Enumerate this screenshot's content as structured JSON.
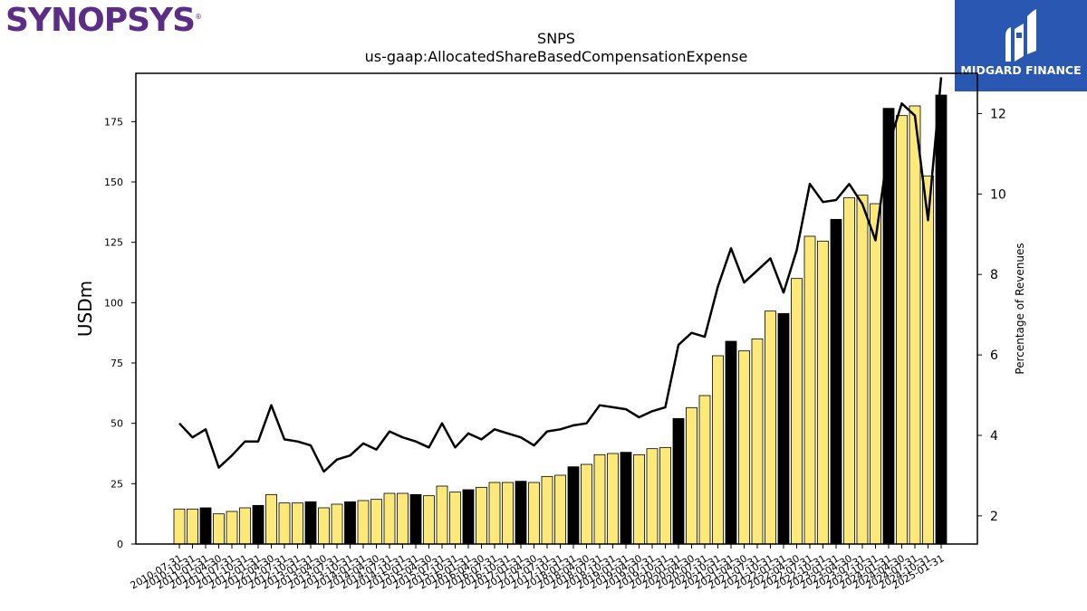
{
  "brand": {
    "left_logo_text": "SYNOPSYS",
    "left_logo_mark": "®",
    "right_logo_name": "MIDGARD FINANCE",
    "right_logo_color": "#2a57b2",
    "left_logo_color": "#5b2d87"
  },
  "chart_data": {
    "type": "bar",
    "title": "SNPS",
    "subtitle": "us-gaap:AllocatedShareBasedCompensationExpense",
    "ylabel": "USDm",
    "y2label": "Percentage of Revenues",
    "ylim": [
      0,
      195
    ],
    "y2lim": [
      1.3,
      13.0
    ],
    "yticks": [
      0,
      25,
      50,
      75,
      100,
      125,
      150,
      175
    ],
    "y2ticks": [
      2,
      4,
      6,
      8,
      10,
      12
    ],
    "grid": false,
    "colors": {
      "bar_yellow": "#fde97a",
      "bar_black": "#000000",
      "line": "#000000"
    },
    "categories": [
      "2010-07-31",
      "2010-10-31",
      "2011-01-31",
      "2011-04-30",
      "2011-07-31",
      "2011-10-31",
      "2012-01-31",
      "2012-04-30",
      "2012-07-31",
      "2012-10-31",
      "2013-01-31",
      "2013-04-30",
      "2013-07-31",
      "2013-10-31",
      "2014-01-31",
      "2014-04-30",
      "2014-07-31",
      "2014-10-31",
      "2015-01-31",
      "2015-04-30",
      "2015-07-31",
      "2015-10-31",
      "2016-01-31",
      "2016-04-30",
      "2016-07-31",
      "2016-10-31",
      "2017-01-31",
      "2017-04-30",
      "2017-07-31",
      "2017-10-31",
      "2018-01-31",
      "2018-04-30",
      "2018-07-31",
      "2018-10-31",
      "2019-01-31",
      "2019-04-30",
      "2019-07-31",
      "2019-10-31",
      "2020-01-31",
      "2020-04-30",
      "2020-07-31",
      "2020-10-31",
      "2021-01-31",
      "2021-04-30",
      "2021-07-31",
      "2021-10-31",
      "2022-01-31",
      "2022-04-30",
      "2022-07-31",
      "2022-10-31",
      "2023-01-31",
      "2023-04-30",
      "2023-07-31",
      "2023-10-31",
      "2024-01-31",
      "2024-04-30",
      "2024-07-31",
      "2024-10-31",
      "2025-01-31"
    ],
    "series": [
      {
        "kind": "bar",
        "values": [
          14.5,
          14.5,
          15.0,
          12.5,
          13.5,
          15.0,
          16.0,
          20.5,
          17.0,
          17.0,
          17.5,
          15.0,
          16.5,
          17.5,
          18.0,
          18.5,
          21.0,
          21.0,
          20.5,
          20.0,
          24.0,
          21.5,
          22.5,
          23.5,
          25.5,
          25.5,
          26.0,
          25.5,
          28.0,
          28.5,
          32.0,
          33.0,
          37.0,
          37.5,
          38.0,
          37.0,
          39.5,
          40.0,
          52.0,
          56.5,
          61.5,
          78.0,
          84.0,
          80.0,
          85.0,
          96.5,
          95.5,
          110.0,
          127.5,
          125.5,
          134.5,
          143.5,
          144.5,
          141.0,
          180.5,
          177.5,
          181.5,
          152.5,
          186.0
        ],
        "highlight": [
          false,
          false,
          true,
          false,
          false,
          false,
          true,
          false,
          false,
          false,
          true,
          false,
          false,
          true,
          false,
          false,
          false,
          false,
          true,
          false,
          false,
          false,
          true,
          false,
          false,
          false,
          true,
          false,
          false,
          false,
          true,
          false,
          false,
          false,
          true,
          false,
          false,
          false,
          true,
          false,
          false,
          false,
          true,
          false,
          false,
          false,
          true,
          false,
          false,
          false,
          true,
          false,
          false,
          false,
          true,
          false,
          false,
          false,
          true
        ]
      },
      {
        "kind": "line",
        "axis": "right",
        "values": [
          4.3,
          3.95,
          4.15,
          3.2,
          3.5,
          3.85,
          3.85,
          4.75,
          3.9,
          3.85,
          3.75,
          3.1,
          3.4,
          3.5,
          3.8,
          3.65,
          4.1,
          3.95,
          3.85,
          3.7,
          4.3,
          3.7,
          4.05,
          3.9,
          4.15,
          4.05,
          3.95,
          3.75,
          4.1,
          4.15,
          4.25,
          4.3,
          4.75,
          4.7,
          4.65,
          4.45,
          4.6,
          4.7,
          6.25,
          6.55,
          6.45,
          7.7,
          8.65,
          7.8,
          8.1,
          8.4,
          7.55,
          8.6,
          10.25,
          9.8,
          9.85,
          10.25,
          9.75,
          8.85,
          11.2,
          12.25,
          11.95,
          9.35,
          12.9
        ]
      }
    ]
  }
}
